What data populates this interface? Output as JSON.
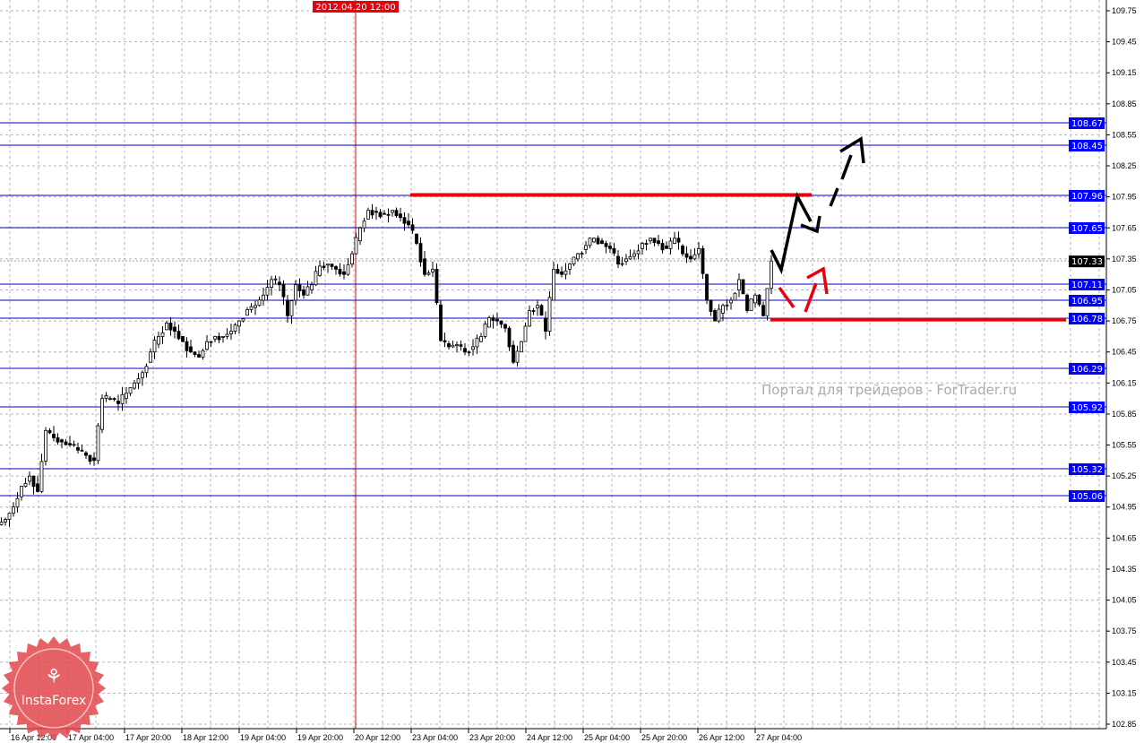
{
  "chart_data": {
    "type": "candlestick",
    "title": "",
    "y_ticks": [
      109.75,
      109.45,
      109.15,
      108.85,
      108.55,
      108.25,
      107.95,
      107.65,
      107.35,
      107.05,
      106.75,
      106.45,
      106.15,
      105.85,
      105.55,
      105.25,
      104.95,
      104.65,
      104.35,
      104.05,
      103.75,
      103.45,
      103.15,
      102.85
    ],
    "ylim": [
      102.85,
      109.75
    ],
    "x_tick_labels": [
      "16 Apr 12:00",
      "17 Apr 04:00",
      "17 Apr 20:00",
      "18 Apr 12:00",
      "19 Apr 04:00",
      "19 Apr 20:00",
      "20 Apr 12:00",
      "23 Apr 04:00",
      "23 Apr 20:00",
      "24 Apr 12:00",
      "25 Apr 04:00",
      "25 Apr 20:00",
      "26 Apr 12:00",
      "27 Apr 04:00"
    ],
    "closes": [
      104.83,
      104.95,
      105.15,
      105.25,
      105.1,
      105.69,
      105.62,
      105.58,
      105.55,
      105.5,
      105.45,
      105.4,
      106.0,
      106.0,
      105.95,
      106.05,
      106.15,
      106.25,
      106.45,
      106.6,
      106.73,
      106.65,
      106.55,
      106.45,
      106.4,
      106.55,
      106.6,
      106.6,
      106.65,
      106.75,
      106.86,
      106.9,
      107.0,
      107.15,
      107.1,
      106.8,
      107.1,
      107.0,
      107.1,
      107.28,
      107.3,
      107.25,
      107.2,
      107.4,
      107.65,
      107.82,
      107.8,
      107.78,
      107.82,
      107.75,
      107.68,
      107.5,
      107.2,
      107.25,
      106.56,
      106.5,
      106.52,
      106.45,
      106.5,
      106.6,
      106.78,
      106.75,
      106.68,
      106.35,
      106.55,
      106.85,
      106.9,
      106.65,
      107.25,
      107.2,
      107.3,
      107.4,
      107.48,
      107.55,
      107.5,
      107.45,
      107.3,
      107.35,
      107.4,
      107.5,
      107.55,
      107.5,
      107.45,
      107.55,
      107.4,
      107.35,
      107.45,
      106.95,
      106.75,
      106.9,
      106.95,
      107.15,
      106.85,
      107.0,
      106.8,
      107.33
    ],
    "current_price": "107.33",
    "levels": [
      "108.67",
      "108.45",
      "107.96",
      "107.65",
      "107.11",
      "106.95",
      "106.78",
      "106.29",
      "105.92",
      "105.32",
      "105.06"
    ],
    "red_levels": [
      107.96,
      106.78
    ],
    "crosshair_time": "2012.04.20 12:00",
    "grid": true,
    "colors": {
      "level_line": "#0000c8",
      "level_label_bg": "#0000ff",
      "red": "#e8000b",
      "candle": "#000000",
      "grid": "#b4b4b4"
    }
  },
  "watermark": "Портал для трейдеров - ForTrader.ru",
  "logo": {
    "text": "InstaForex",
    "color": "#e0474c"
  }
}
